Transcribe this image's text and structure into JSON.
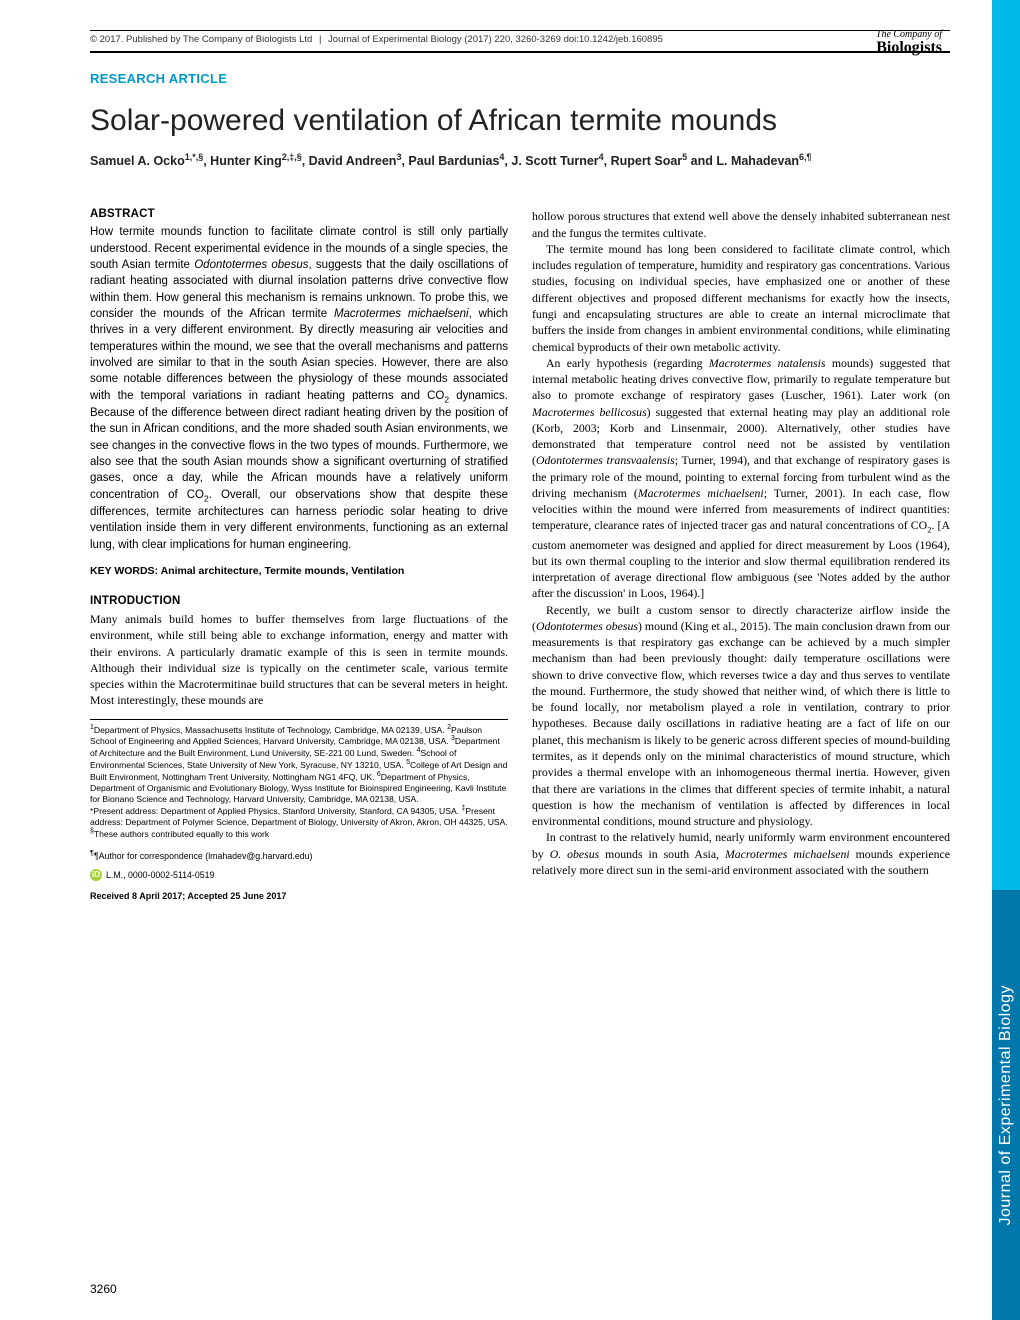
{
  "header": {
    "copyright": "© 2017. Published by The Company of Biologists Ltd",
    "journal_cite": "Journal of Experimental Biology (2017) 220, 3260-3269 doi:10.1242/jeb.160895"
  },
  "publisher": {
    "line1": "The Company of",
    "line2": "Biologists"
  },
  "article_type": "RESEARCH ARTICLE",
  "title": "Solar-powered ventilation of African termite mounds",
  "authors_html": "Samuel A. Ocko<sup>1,*,§</sup>, Hunter King<sup>2,‡,§</sup>, David Andreen<sup>3</sup>, Paul Bardunias<sup>4</sup>, J. Scott Turner<sup>4</sup>, Rupert Soar<sup>5</sup> and L. Mahadevan<sup>6,¶</sup>",
  "abstract_heading": "ABSTRACT",
  "abstract": "How termite mounds function to facilitate climate control is still only partially understood. Recent experimental evidence in the mounds of a single species, the south Asian termite <em>Odontotermes obesus</em>, suggests that the daily oscillations of radiant heating associated with diurnal insolation patterns drive convective flow within them. How general this mechanism is remains unknown. To probe this, we consider the mounds of the African termite <em>Macrotermes michaelseni</em>, which thrives in a very different environment. By directly measuring air velocities and temperatures within the mound, we see that the overall mechanisms and patterns involved are similar to that in the south Asian species. However, there are also some notable differences between the physiology of these mounds associated with the temporal variations in radiant heating patterns and CO<sub>2</sub> dynamics. Because of the difference between direct radiant heating driven by the position of the sun in African conditions, and the more shaded south Asian environments, we see changes in the convective flows in the two types of mounds. Furthermore, we also see that the south Asian mounds show a significant overturning of stratified gases, once a day, while the African mounds have a relatively uniform concentration of CO<sub>2</sub>. Overall, our observations show that despite these differences, termite architectures can harness periodic solar heating to drive ventilation inside them in very different environments, functioning as an external lung, with clear implications for human engineering.",
  "keywords": "KEY WORDS: Animal architecture, Termite mounds, Ventilation",
  "intro_heading": "INTRODUCTION",
  "intro_p1": "Many animals build homes to buffer themselves from large fluctuations of the environment, while still being able to exchange information, energy and matter with their environs. A particularly dramatic example of this is seen in termite mounds. Although their individual size is typically on the centimeter scale, various termite species within the Macrotermitinae build structures that can be several meters in height. Most interestingly, these mounds are",
  "col2_p1": "hollow porous structures that extend well above the densely inhabited subterranean nest and the fungus the termites cultivate.",
  "col2_p2": "The termite mound has long been considered to facilitate climate control, which includes regulation of temperature, humidity and respiratory gas concentrations. Various studies, focusing on individual species, have emphasized one or another of these different objectives and proposed different mechanisms for exactly how the insects, fungi and encapsulating structures are able to create an internal microclimate that buffers the inside from changes in ambient environmental conditions, while eliminating chemical byproducts of their own metabolic activity.",
  "col2_p3": "An early hypothesis (regarding <em>Macrotermes natalensis</em> mounds) suggested that internal metabolic heating drives convective flow, primarily to regulate temperature but also to promote exchange of respiratory gases (Luscher, 1961). Later work (on <em>Macrotermes bellicosus</em>) suggested that external heating may play an additional role (Korb, 2003; Korb and Linsenmair, 2000). Alternatively, other studies have demonstrated that temperature control need not be assisted by ventilation (<em>Odontotermes transvaalensis</em>; Turner, 1994), and that exchange of respiratory gases is the primary role of the mound, pointing to external forcing from turbulent wind as the driving mechanism (<em>Macrotermes michaelseni</em>; Turner, 2001). In each case, flow velocities within the mound were inferred from measurements of indirect quantities: temperature, clearance rates of injected tracer gas and natural concentrations of CO<sub>2</sub>. [A custom anemometer was designed and applied for direct measurement by Loos (1964), but its own thermal coupling to the interior and slow thermal equilibration rendered its interpretation of average directional flow ambiguous (see 'Notes added by the author after the discussion' in Loos, 1964).]",
  "col2_p4": "Recently, we built a custom sensor to directly characterize airflow inside the (<em>Odontotermes obesus</em>) mound (King et al., 2015). The main conclusion drawn from our measurements is that respiratory gas exchange can be achieved by a much simpler mechanism than had been previously thought: daily temperature oscillations were shown to drive convective flow, which reverses twice a day and thus serves to ventilate the mound. Furthermore, the study showed that neither wind, of which there is little to be found locally, nor metabolism played a role in ventilation, contrary to prior hypotheses. Because daily oscillations in radiative heating are a fact of life on our planet, this mechanism is likely to be generic across different species of mound-building termites, as it depends only on the minimal characteristics of mound structure, which provides a thermal envelope with an inhomogeneous thermal inertia. However, given that there are variations in the climes that different species of termite inhabit, a natural question is how the mechanism of ventilation is affected by differences in local environmental conditions, mound structure and physiology.",
  "col2_p5": "In contrast to the relatively humid, nearly uniformly warm environment encountered by <em>O. obesus</em> mounds in south Asia, <em>Macrotermes michaelseni</em> mounds experience relatively more direct sun in the semi-arid environment associated with the southern",
  "affiliations": "<sup>1</sup>Department of Physics, Massachusetts Institute of Technology, Cambridge, MA 02139, USA. <sup>2</sup>Paulson School of Engineering and Applied Sciences, Harvard University, Cambridge, MA 02138, USA. <sup>3</sup>Department of Architecture and the Built Environment, Lund University, SE-221 00 Lund, Sweden. <sup>4</sup>School of Environmental Sciences, State University of New York, Syracuse, NY 13210, USA. <sup>5</sup>College of Art Design and Built Environment, Nottingham Trent University, Nottingham NG1 4FQ, UK. <sup>6</sup>Department of Physics, Department of Organismic and Evolutionary Biology, Wyss Institute for Bioinspired Engineering, Kavli Institute for Bionano Science and Technology, Harvard University, Cambridge, MA 02138, USA.<br>*Present address: Department of Applied Physics, Stanford University, Stanford, CA 94305, USA. <sup>‡</sup>Present address: Department of Polymer Science, Department of Biology, University of Akron, Akron, OH 44325, USA.<br><sup>§</sup>These authors contributed equally to this work",
  "correspondence": "¶Author for correspondence (lmahadev@g.harvard.edu)",
  "orcid": "L.M., 0000-0002-5114-0519",
  "received": "Received 8 April 2017; Accepted 25 June 2017",
  "page_number": "3260",
  "side_tab": "Journal of Experimental Biology"
}
